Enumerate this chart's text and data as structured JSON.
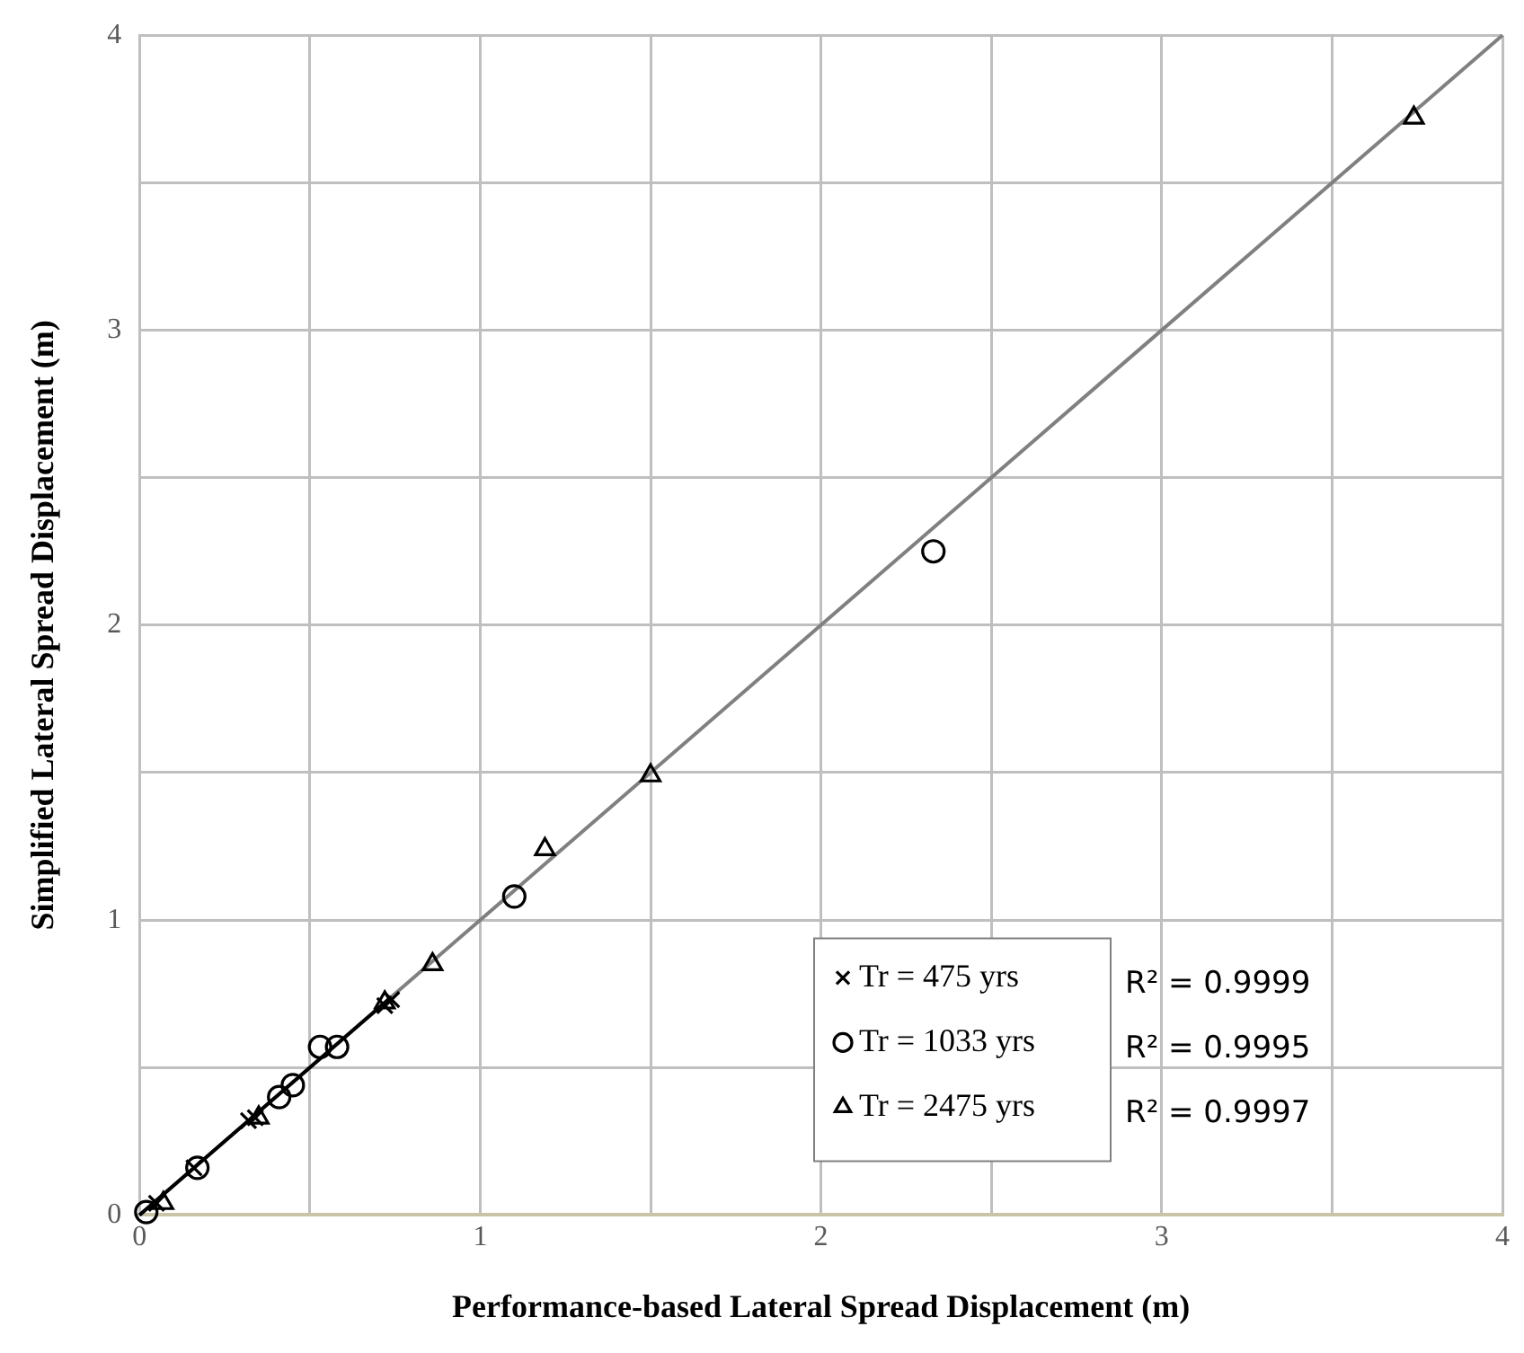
{
  "chart_data": {
    "type": "scatter",
    "xlabel": "Performance-based Lateral Spread Displacement (m)",
    "ylabel": "Simplified Lateral Spread Displacement (m)",
    "xlim": [
      0,
      4
    ],
    "ylim": [
      0,
      4
    ],
    "xticks": [
      0,
      {
        "value": 0.5,
        "label": null
      },
      1,
      {
        "value": 1.5,
        "label": null
      },
      2,
      {
        "value": 2.5,
        "label": null
      },
      3,
      {
        "value": 3.5,
        "label": null
      },
      4
    ],
    "yticks": [
      0,
      {
        "value": 0.5,
        "label": null
      },
      1,
      {
        "value": 1.5,
        "label": null
      },
      2,
      {
        "value": 2.5,
        "label": null
      },
      3,
      {
        "value": 3.5,
        "label": null
      },
      4
    ],
    "grid": true,
    "legend": "bottom right",
    "series": [
      {
        "name": "Tr = 475 yrs",
        "color": "#000000",
        "marker": "cross",
        "x": [
          0.05,
          0.16,
          0.32,
          0.34,
          0.72,
          0.74
        ],
        "values": [
          0.04,
          0.16,
          0.32,
          0.33,
          0.71,
          0.73
        ]
      },
      {
        "name": "Tr = 1033 yrs",
        "color": "#000000",
        "marker": "circle",
        "x": [
          0.02,
          0.17,
          0.41,
          0.45,
          0.53,
          0.58,
          1.1,
          2.33
        ],
        "values": [
          0.01,
          0.16,
          0.4,
          0.44,
          0.57,
          0.57,
          1.08,
          2.25
        ]
      },
      {
        "name": "Tr = 2475 yrs",
        "color": "#000000",
        "marker": "triangle",
        "x": [
          0.07,
          0.35,
          0.72,
          0.86,
          1.19,
          1.5,
          3.74
        ],
        "values": [
          0.04,
          0.33,
          0.72,
          0.85,
          1.24,
          1.49,
          3.72
        ]
      },
      {
        "type": "line",
        "color": "#000000",
        "marker": "none",
        "x": [
          0,
          0.74
        ],
        "values": [
          0,
          0.74
        ]
      },
      {
        "type": "line",
        "color": "#808080",
        "marker": "none",
        "x": [
          0,
          4
        ],
        "values": [
          0,
          4
        ]
      }
    ],
    "annotations": [
      "R² = 0.9999",
      "R² = 0.9995",
      "R² = 0.9997"
    ]
  }
}
